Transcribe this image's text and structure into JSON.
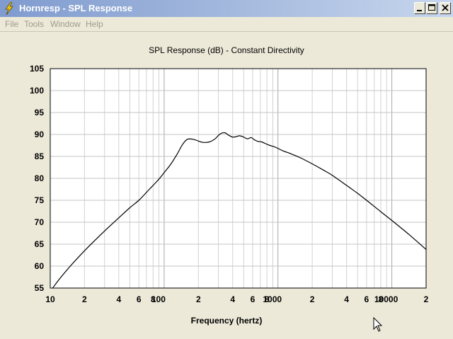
{
  "window": {
    "title": "Hornresp - SPL Response"
  },
  "menu": [
    "File",
    "Tools",
    "Window",
    "Help"
  ],
  "chart_data": {
    "type": "line",
    "title": "SPL Response (dB) - Constant Directivity",
    "xlabel": "Frequency (hertz)",
    "ylabel": "",
    "xscale": "log",
    "xlim": [
      10,
      20000
    ],
    "ylim": [
      55,
      105
    ],
    "yticks": [
      "55",
      "60",
      "65",
      "70",
      "75",
      "80",
      "85",
      "90",
      "95",
      "100",
      "105"
    ],
    "xticks": [
      {
        "v": 10,
        "label": "10"
      },
      {
        "v": 20,
        "label": "2"
      },
      {
        "v": 40,
        "label": "4"
      },
      {
        "v": 60,
        "label": "6"
      },
      {
        "v": 80,
        "label": "8"
      },
      {
        "v": 100,
        "label": "100"
      },
      {
        "v": 200,
        "label": "2"
      },
      {
        "v": 400,
        "label": "4"
      },
      {
        "v": 600,
        "label": "6"
      },
      {
        "v": 800,
        "label": "8"
      },
      {
        "v": 1000,
        "label": "1000"
      },
      {
        "v": 2000,
        "label": "2"
      },
      {
        "v": 4000,
        "label": "4"
      },
      {
        "v": 6000,
        "label": "6"
      },
      {
        "v": 8000,
        "label": "8"
      },
      {
        "v": 10000,
        "label": "10000"
      },
      {
        "v": 20000,
        "label": "2"
      }
    ],
    "grid": true,
    "series": [
      {
        "x": [
          10.5,
          12,
          15,
          20,
          30,
          40,
          50,
          60,
          70,
          80,
          90,
          100,
          115,
          130,
          145,
          160,
          180,
          200,
          220,
          250,
          280,
          310,
          340,
          370,
          400,
          430,
          460,
          500,
          540,
          580,
          620,
          670,
          720,
          780,
          850,
          950,
          1100,
          1300,
          1600,
          2000,
          2500,
          3000,
          4000,
          5000,
          6000,
          8000,
          10000,
          14000,
          20000
        ],
        "y": [
          55,
          57,
          60,
          63.5,
          68,
          71,
          73.3,
          75,
          76.8,
          78.4,
          79.8,
          81.3,
          83.3,
          85.5,
          87.7,
          88.9,
          88.9,
          88.5,
          88.2,
          88.3,
          89.0,
          90.1,
          90.4,
          89.8,
          89.4,
          89.5,
          89.7,
          89.4,
          89.0,
          89.3,
          88.8,
          88.4,
          88.3,
          87.9,
          87.5,
          87.1,
          86.3,
          85.6,
          84.6,
          83.3,
          81.9,
          80.7,
          78.4,
          76.6,
          75.0,
          72.4,
          70.4,
          67.3,
          63.8
        ]
      }
    ]
  }
}
